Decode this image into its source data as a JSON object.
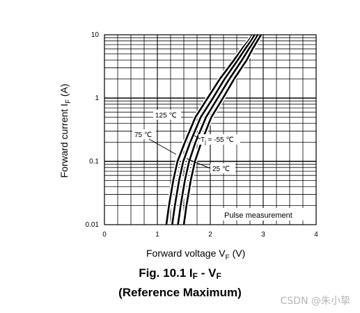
{
  "chart_data": {
    "type": "line",
    "x_axis": {
      "label": "Forward voltage  V",
      "label_sub": "F",
      "label_unit": "  (V)",
      "range": [
        0,
        4
      ],
      "ticks": [
        "0",
        "1",
        "2",
        "3",
        "4"
      ],
      "scale": "linear",
      "minor_step": 0.25
    },
    "y_axis": {
      "label": "Forward current  I",
      "label_sub": "F",
      "label_unit": "  (A)",
      "range": [
        0.01,
        10
      ],
      "ticks": [
        "0.01",
        "0.1",
        "1",
        "10"
      ],
      "scale": "log"
    },
    "grid": true,
    "series": [
      {
        "name": "125 ℃",
        "points": [
          [
            1.17,
            0.01
          ],
          [
            1.22,
            0.02
          ],
          [
            1.3,
            0.05
          ],
          [
            1.38,
            0.1
          ],
          [
            1.52,
            0.2
          ],
          [
            1.72,
            0.5
          ],
          [
            1.95,
            1
          ],
          [
            2.18,
            2
          ],
          [
            2.45,
            4
          ],
          [
            2.6,
            6
          ],
          [
            2.72,
            8
          ],
          [
            2.8,
            10
          ]
        ]
      },
      {
        "name": "75 ℃",
        "points": [
          [
            1.28,
            0.01
          ],
          [
            1.33,
            0.02
          ],
          [
            1.41,
            0.05
          ],
          [
            1.49,
            0.1
          ],
          [
            1.62,
            0.2
          ],
          [
            1.82,
            0.5
          ],
          [
            2.05,
            1
          ],
          [
            2.27,
            2
          ],
          [
            2.52,
            4
          ],
          [
            2.66,
            6
          ],
          [
            2.77,
            8
          ],
          [
            2.84,
            10
          ]
        ]
      },
      {
        "name": "25 ℃",
        "points": [
          [
            1.39,
            0.01
          ],
          [
            1.44,
            0.02
          ],
          [
            1.52,
            0.05
          ],
          [
            1.6,
            0.1
          ],
          [
            1.72,
            0.2
          ],
          [
            1.92,
            0.5
          ],
          [
            2.14,
            1
          ],
          [
            2.36,
            2
          ],
          [
            2.6,
            4
          ],
          [
            2.73,
            6
          ],
          [
            2.83,
            8
          ],
          [
            2.9,
            10
          ]
        ]
      },
      {
        "name": "Tj = -55 ℃",
        "points": [
          [
            1.5,
            0.01
          ],
          [
            1.55,
            0.02
          ],
          [
            1.63,
            0.05
          ],
          [
            1.71,
            0.1
          ],
          [
            1.83,
            0.2
          ],
          [
            2.02,
            0.5
          ],
          [
            2.24,
            1
          ],
          [
            2.45,
            2
          ],
          [
            2.69,
            4
          ],
          [
            2.8,
            6
          ],
          [
            2.89,
            8
          ],
          [
            2.96,
            10
          ]
        ]
      }
    ],
    "annotations": {
      "t125": "125 ℃",
      "t75": "75 ℃",
      "tj_prefix": "T",
      "tj_sub": "j",
      "tj_value": " = -55 ℃",
      "t25": "25 ℃",
      "pulse": "Pulse measurement"
    }
  },
  "figure": {
    "title_prefix": "Fig. 10.1    I",
    "title_sub1": "F",
    "title_mid": " - V",
    "title_sub2": "F",
    "subtitle": "(Reference Maximum)"
  },
  "watermark": "CSDN @朱小挚"
}
